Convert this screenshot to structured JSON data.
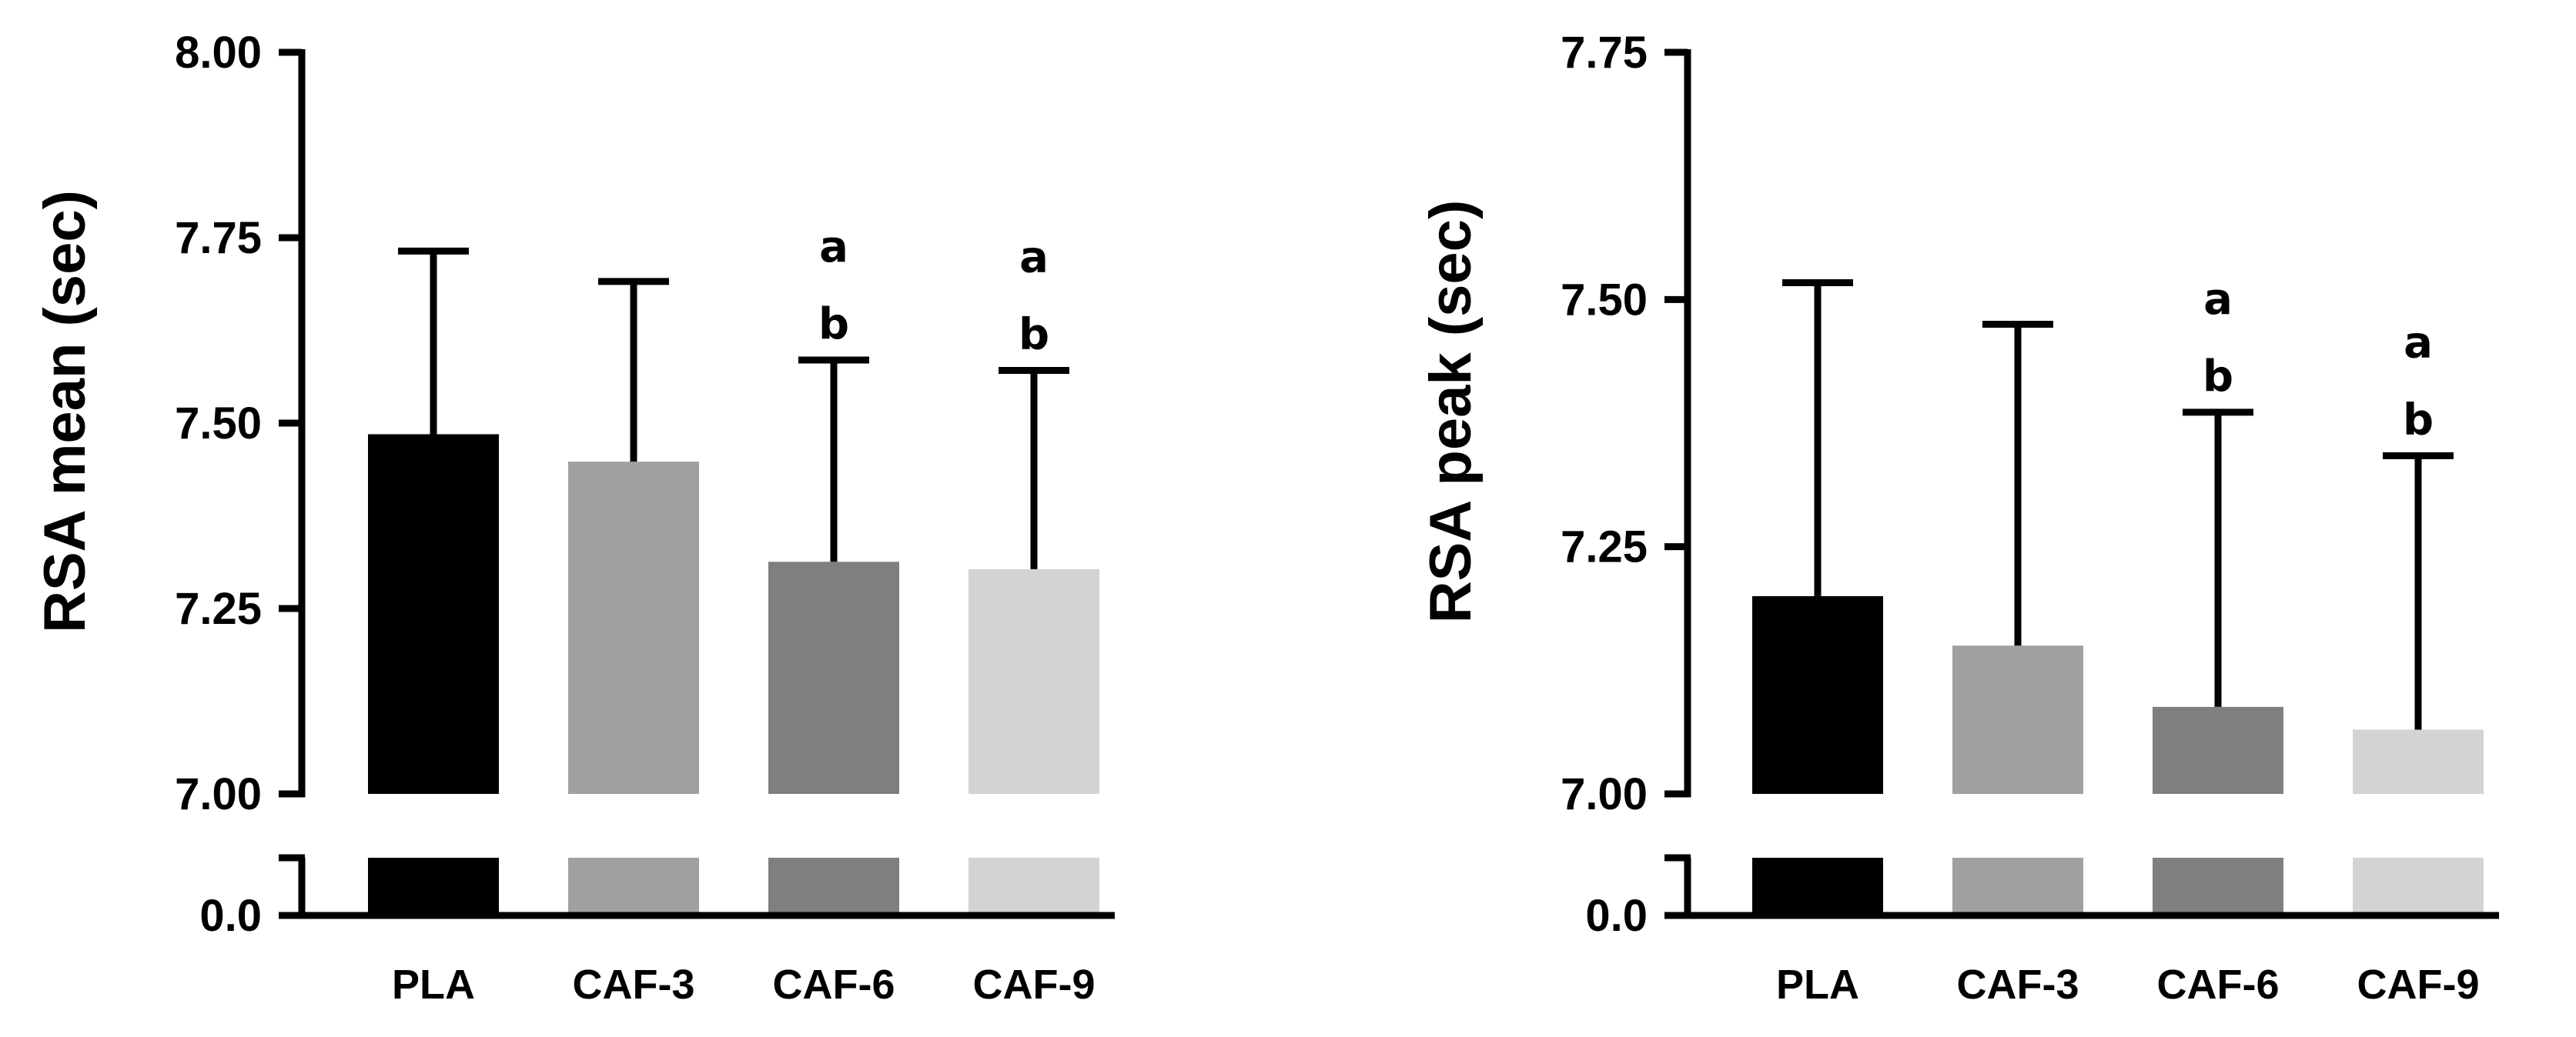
{
  "chart_data": [
    {
      "type": "bar",
      "title": "",
      "xlabel": "",
      "ylabel": "RSA mean (sec)",
      "categories": [
        "PLA",
        "CAF-3",
        "CAF-6",
        "CAF-9"
      ],
      "values": [
        7.485,
        7.448,
        7.313,
        7.303
      ],
      "error_plus": [
        0.247,
        0.243,
        0.272,
        0.268
      ],
      "significance": [
        "",
        "",
        "a\nb",
        "a\nb"
      ],
      "colors": [
        "#000000",
        "#a0a0a2",
        "#7f7f7f",
        "#d3d3d3"
      ],
      "ylim": [
        7.0,
        8.0
      ],
      "yticks": [
        "7.00",
        "7.25",
        "7.50",
        "7.75",
        "8.00"
      ],
      "ytick_values": [
        7.0,
        7.25,
        7.5,
        7.75,
        8.0
      ],
      "lower_segment": {
        "tick_label": "0.0",
        "range": [
          0.0,
          7.0
        ]
      },
      "grid": false
    },
    {
      "type": "bar",
      "title": "",
      "xlabel": "",
      "ylabel": "RSA peak (sec)",
      "categories": [
        "PLA",
        "CAF-3",
        "CAF-6",
        "CAF-9"
      ],
      "values": [
        7.2,
        7.15,
        7.088,
        7.065
      ],
      "error_plus": [
        0.317,
        0.325,
        0.298,
        0.277
      ],
      "significance": [
        "",
        "",
        "a\nb",
        "a\nb"
      ],
      "colors": [
        "#000000",
        "#a0a0a2",
        "#7f7f7f",
        "#d3d3d3"
      ],
      "ylim": [
        7.0,
        7.75
      ],
      "yticks": [
        "7.00",
        "7.25",
        "7.50",
        "7.75"
      ],
      "ytick_values": [
        7.0,
        7.25,
        7.5,
        7.75
      ],
      "lower_segment": {
        "tick_label": "0.0",
        "range": [
          0.0,
          7.0
        ]
      },
      "grid": false
    }
  ]
}
